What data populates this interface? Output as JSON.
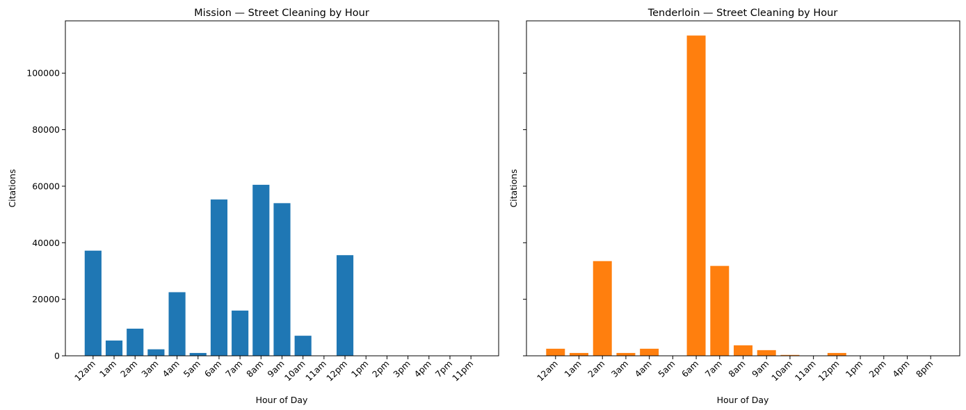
{
  "chart_data": [
    {
      "type": "bar",
      "title": "Mission — Street Cleaning by Hour",
      "xlabel": "Hour of Day",
      "ylabel": "Citations",
      "ylim": [
        0,
        118500
      ],
      "yticks": [
        0,
        20000,
        40000,
        60000,
        80000,
        100000
      ],
      "color": "#1f77b4",
      "categories": [
        "12am",
        "1am",
        "2am",
        "3am",
        "4am",
        "5am",
        "6am",
        "7am",
        "8am",
        "9am",
        "10am",
        "11am",
        "12pm",
        "1pm",
        "2pm",
        "3pm",
        "4pm",
        "7pm",
        "11pm"
      ],
      "values": [
        37200,
        5400,
        9600,
        2300,
        22500,
        1000,
        55300,
        16000,
        60500,
        54000,
        7100,
        0,
        35600,
        0,
        0,
        0,
        0,
        0,
        0
      ]
    },
    {
      "type": "bar",
      "title": "Tenderloin — Street Cleaning by Hour",
      "xlabel": "Hour of Day",
      "ylabel": "Citations",
      "ylim": [
        0,
        118500
      ],
      "yticks": [
        0,
        20000,
        40000,
        60000,
        80000,
        100000
      ],
      "color": "#ff7f0e",
      "categories": [
        "12am",
        "1am",
        "2am",
        "3am",
        "4am",
        "5am",
        "6am",
        "7am",
        "8am",
        "9am",
        "10am",
        "11am",
        "12pm",
        "1pm",
        "2pm",
        "4pm",
        "8pm"
      ],
      "values": [
        2500,
        1000,
        33500,
        1000,
        2500,
        0,
        113300,
        31800,
        3700,
        2000,
        300,
        0,
        1000,
        0,
        0,
        0,
        0
      ]
    }
  ]
}
